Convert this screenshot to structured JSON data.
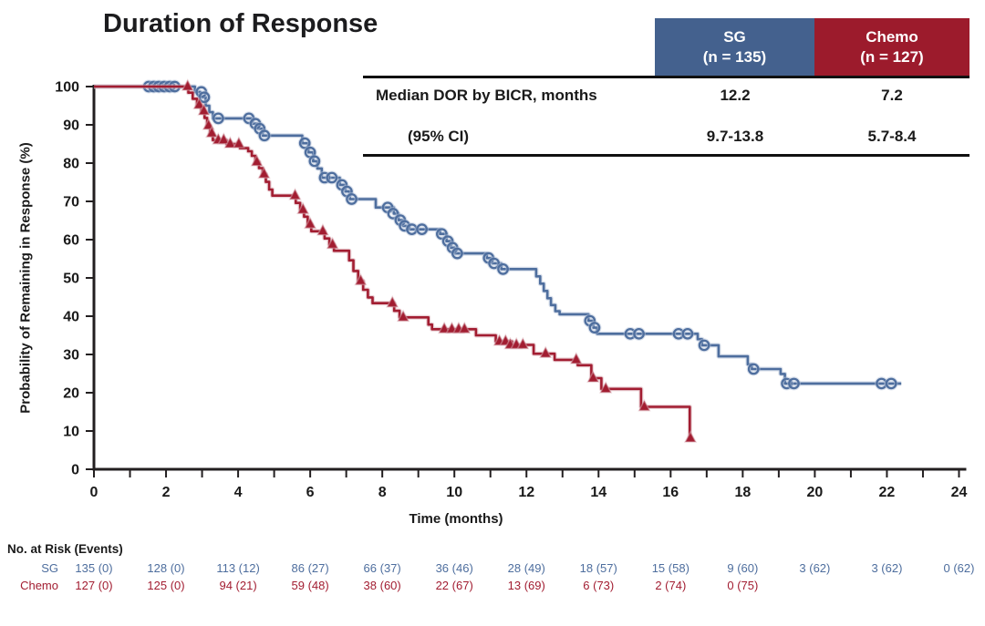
{
  "title": "Duration of Response",
  "colors": {
    "sg_header": "#44618e",
    "chemo_header": "#9c1b2c",
    "sg_line": "#4e6e9e",
    "sg_halo": "#b6c3d9",
    "chemo_line": "#a21d31",
    "chemo_halo": "#d8aab2",
    "axis": "#231f20",
    "text": "#1a1a1a"
  },
  "stats_table": {
    "columns": [
      {
        "label": "SG",
        "sub": "(n = 135)"
      },
      {
        "label": "Chemo",
        "sub": "(n = 127)"
      }
    ],
    "rows": [
      {
        "label": "Median DOR by BICR, months",
        "values": [
          "12.2",
          "7.2"
        ]
      },
      {
        "label": "(95% CI)",
        "values": [
          "9.7-13.8",
          "5.7-8.4"
        ]
      }
    ]
  },
  "chart_data": {
    "type": "line",
    "subtype": "kaplan-meier-step",
    "title": "Duration of Response",
    "xlabel": "Time (months)",
    "ylabel": "Probability of Remaining in Response (%)",
    "xlim": [
      0,
      24
    ],
    "ylim": [
      0,
      100
    ],
    "xticks_labeled": [
      0,
      2,
      4,
      6,
      8,
      10,
      12,
      14,
      16,
      18,
      20,
      22,
      24
    ],
    "xticks_minor_every": 1,
    "yticks": [
      0,
      10,
      20,
      30,
      40,
      50,
      60,
      70,
      80,
      90,
      100
    ],
    "grid": false,
    "legend_position": "none",
    "series": [
      {
        "name": "SG",
        "median_months": "12.2",
        "ci_95": "9.7-13.8",
        "marker": "open-circle",
        "points": [
          [
            0,
            100
          ],
          [
            2.8,
            100
          ],
          [
            2.8,
            98.6
          ],
          [
            2.95,
            98.6
          ],
          [
            2.95,
            97.2
          ],
          [
            3.1,
            97.2
          ],
          [
            3.1,
            95.0
          ],
          [
            3.2,
            95.0
          ],
          [
            3.2,
            93.3
          ],
          [
            3.3,
            93.3
          ],
          [
            3.3,
            91.7
          ],
          [
            4.38,
            91.7
          ],
          [
            4.38,
            90.3
          ],
          [
            4.55,
            90.3
          ],
          [
            4.55,
            89.0
          ],
          [
            4.68,
            89.0
          ],
          [
            4.68,
            87.2
          ],
          [
            5.78,
            87.2
          ],
          [
            5.78,
            85.2
          ],
          [
            5.95,
            85.2
          ],
          [
            5.95,
            82.8
          ],
          [
            6.08,
            82.8
          ],
          [
            6.08,
            80.5
          ],
          [
            6.2,
            80.5
          ],
          [
            6.2,
            78.6
          ],
          [
            6.32,
            78.6
          ],
          [
            6.32,
            76.2
          ],
          [
            6.82,
            76.2
          ],
          [
            6.82,
            74.3
          ],
          [
            6.98,
            74.3
          ],
          [
            6.98,
            72.6
          ],
          [
            7.1,
            72.6
          ],
          [
            7.1,
            70.6
          ],
          [
            7.82,
            70.6
          ],
          [
            7.82,
            68.4
          ],
          [
            8.32,
            68.4
          ],
          [
            8.32,
            66.8
          ],
          [
            8.45,
            66.8
          ],
          [
            8.45,
            65.1
          ],
          [
            8.58,
            65.1
          ],
          [
            8.58,
            63.6
          ],
          [
            8.75,
            63.6
          ],
          [
            8.75,
            62.7
          ],
          [
            9.6,
            62.7
          ],
          [
            9.6,
            61.5
          ],
          [
            9.78,
            61.5
          ],
          [
            9.78,
            59.6
          ],
          [
            9.9,
            59.6
          ],
          [
            9.9,
            57.9
          ],
          [
            10.02,
            57.9
          ],
          [
            10.02,
            56.4
          ],
          [
            10.9,
            56.4
          ],
          [
            10.9,
            55.2
          ],
          [
            11.05,
            55.2
          ],
          [
            11.05,
            53.8
          ],
          [
            11.3,
            53.8
          ],
          [
            11.3,
            52.3
          ],
          [
            12.27,
            52.3
          ],
          [
            12.27,
            50.4
          ],
          [
            12.38,
            50.4
          ],
          [
            12.38,
            48.5
          ],
          [
            12.48,
            48.5
          ],
          [
            12.48,
            46.6
          ],
          [
            12.58,
            46.6
          ],
          [
            12.58,
            44.7
          ],
          [
            12.68,
            44.7
          ],
          [
            12.68,
            42.9
          ],
          [
            12.8,
            42.9
          ],
          [
            12.8,
            41.3
          ],
          [
            12.92,
            41.3
          ],
          [
            12.92,
            40.5
          ],
          [
            13.72,
            40.5
          ],
          [
            13.72,
            38.8
          ],
          [
            13.86,
            38.8
          ],
          [
            13.86,
            37.0
          ],
          [
            13.96,
            37.0
          ],
          [
            13.96,
            35.4
          ],
          [
            16.75,
            35.4
          ],
          [
            16.75,
            34.0
          ],
          [
            16.87,
            34.0
          ],
          [
            16.87,
            32.4
          ],
          [
            17.33,
            32.4
          ],
          [
            17.33,
            29.5
          ],
          [
            18.14,
            29.5
          ],
          [
            18.14,
            27.4
          ],
          [
            18.25,
            27.4
          ],
          [
            18.25,
            26.2
          ],
          [
            19.05,
            26.2
          ],
          [
            19.05,
            24.9
          ],
          [
            19.17,
            24.9
          ],
          [
            19.17,
            22.4
          ],
          [
            22.4,
            22.4
          ]
        ],
        "censors": [
          [
            1.52,
            100
          ],
          [
            1.66,
            100
          ],
          [
            1.8,
            100
          ],
          [
            1.95,
            100
          ],
          [
            2.1,
            100
          ],
          [
            2.24,
            100
          ],
          [
            2.98,
            98.6
          ],
          [
            3.06,
            97.2
          ],
          [
            3.45,
            91.7
          ],
          [
            4.3,
            91.7
          ],
          [
            4.48,
            90.3
          ],
          [
            4.6,
            89.0
          ],
          [
            4.73,
            87.2
          ],
          [
            5.85,
            85.2
          ],
          [
            6.0,
            82.8
          ],
          [
            6.12,
            80.5
          ],
          [
            6.4,
            76.2
          ],
          [
            6.6,
            76.2
          ],
          [
            6.88,
            74.3
          ],
          [
            7.02,
            72.6
          ],
          [
            7.15,
            70.6
          ],
          [
            8.15,
            68.4
          ],
          [
            8.3,
            66.8
          ],
          [
            8.5,
            65.1
          ],
          [
            8.62,
            63.6
          ],
          [
            8.82,
            62.7
          ],
          [
            9.1,
            62.7
          ],
          [
            9.65,
            61.5
          ],
          [
            9.82,
            59.6
          ],
          [
            9.95,
            57.9
          ],
          [
            10.08,
            56.4
          ],
          [
            10.95,
            55.2
          ],
          [
            11.1,
            53.8
          ],
          [
            11.35,
            52.3
          ],
          [
            13.76,
            38.8
          ],
          [
            13.89,
            37.0
          ],
          [
            14.88,
            35.4
          ],
          [
            15.12,
            35.4
          ],
          [
            16.22,
            35.4
          ],
          [
            16.47,
            35.4
          ],
          [
            16.93,
            32.4
          ],
          [
            18.3,
            26.2
          ],
          [
            19.22,
            22.4
          ],
          [
            19.42,
            22.4
          ],
          [
            21.85,
            22.4
          ],
          [
            22.12,
            22.4
          ]
        ]
      },
      {
        "name": "Chemo",
        "median_months": "7.2",
        "ci_95": "5.7-8.4",
        "marker": "filled-triangle",
        "points": [
          [
            0,
            100
          ],
          [
            2.62,
            100
          ],
          [
            2.62,
            98.4
          ],
          [
            2.74,
            98.4
          ],
          [
            2.74,
            96.8
          ],
          [
            2.86,
            96.8
          ],
          [
            2.86,
            95.2
          ],
          [
            2.98,
            95.2
          ],
          [
            2.98,
            93.6
          ],
          [
            3.07,
            93.6
          ],
          [
            3.07,
            91.8
          ],
          [
            3.14,
            91.8
          ],
          [
            3.14,
            89.8
          ],
          [
            3.22,
            89.8
          ],
          [
            3.22,
            87.8
          ],
          [
            3.3,
            87.8
          ],
          [
            3.3,
            86.0
          ],
          [
            3.68,
            86.0
          ],
          [
            3.68,
            85.0
          ],
          [
            4.05,
            85.0
          ],
          [
            4.05,
            83.9
          ],
          [
            4.28,
            83.9
          ],
          [
            4.28,
            83.1
          ],
          [
            4.38,
            83.1
          ],
          [
            4.38,
            81.9
          ],
          [
            4.48,
            81.9
          ],
          [
            4.48,
            80.3
          ],
          [
            4.58,
            80.3
          ],
          [
            4.58,
            78.7
          ],
          [
            4.68,
            78.7
          ],
          [
            4.68,
            77.1
          ],
          [
            4.77,
            77.1
          ],
          [
            4.77,
            75.1
          ],
          [
            4.86,
            75.1
          ],
          [
            4.86,
            73.1
          ],
          [
            4.95,
            73.1
          ],
          [
            4.95,
            71.5
          ],
          [
            5.6,
            71.5
          ],
          [
            5.6,
            69.6
          ],
          [
            5.72,
            69.6
          ],
          [
            5.72,
            67.8
          ],
          [
            5.83,
            67.8
          ],
          [
            5.83,
            66.0
          ],
          [
            5.93,
            66.0
          ],
          [
            5.93,
            64.0
          ],
          [
            6.03,
            64.0
          ],
          [
            6.03,
            62.2
          ],
          [
            6.4,
            62.2
          ],
          [
            6.4,
            60.3
          ],
          [
            6.53,
            60.3
          ],
          [
            6.53,
            58.7
          ],
          [
            6.66,
            58.7
          ],
          [
            6.66,
            57.1
          ],
          [
            7.08,
            57.1
          ],
          [
            7.08,
            54.6
          ],
          [
            7.2,
            54.6
          ],
          [
            7.2,
            51.8
          ],
          [
            7.33,
            51.8
          ],
          [
            7.33,
            49.2
          ],
          [
            7.47,
            49.2
          ],
          [
            7.47,
            46.9
          ],
          [
            7.6,
            46.9
          ],
          [
            7.6,
            44.9
          ],
          [
            7.73,
            44.9
          ],
          [
            7.73,
            43.4
          ],
          [
            8.33,
            43.4
          ],
          [
            8.33,
            41.4
          ],
          [
            8.48,
            41.4
          ],
          [
            8.48,
            39.7
          ],
          [
            9.28,
            39.7
          ],
          [
            9.28,
            37.8
          ],
          [
            9.38,
            37.8
          ],
          [
            9.38,
            36.6
          ],
          [
            10.6,
            36.6
          ],
          [
            10.6,
            35.0
          ],
          [
            11.15,
            35.0
          ],
          [
            11.15,
            33.4
          ],
          [
            11.6,
            33.4
          ],
          [
            11.6,
            32.5
          ],
          [
            12.2,
            32.5
          ],
          [
            12.2,
            30.2
          ],
          [
            12.78,
            30.2
          ],
          [
            12.78,
            28.6
          ],
          [
            13.42,
            28.6
          ],
          [
            13.42,
            27.2
          ],
          [
            13.8,
            27.2
          ],
          [
            13.8,
            23.8
          ],
          [
            14.08,
            23.8
          ],
          [
            14.08,
            21.0
          ],
          [
            15.18,
            21.0
          ],
          [
            15.18,
            16.3
          ],
          [
            16.53,
            16.3
          ],
          [
            16.53,
            8.1
          ]
        ],
        "censors": [
          [
            2.6,
            100
          ],
          [
            2.92,
            95.2
          ],
          [
            3.05,
            93.6
          ],
          [
            3.18,
            89.8
          ],
          [
            3.27,
            87.8
          ],
          [
            3.45,
            86.0
          ],
          [
            3.6,
            86.0
          ],
          [
            3.78,
            85.0
          ],
          [
            4.02,
            85.0
          ],
          [
            4.52,
            80.3
          ],
          [
            4.72,
            77.1
          ],
          [
            5.58,
            71.5
          ],
          [
            5.8,
            67.8
          ],
          [
            6.0,
            64.0
          ],
          [
            6.35,
            62.2
          ],
          [
            6.62,
            58.7
          ],
          [
            7.4,
            49.2
          ],
          [
            8.28,
            43.4
          ],
          [
            8.58,
            39.7
          ],
          [
            9.72,
            36.6
          ],
          [
            9.93,
            36.6
          ],
          [
            10.12,
            36.6
          ],
          [
            10.28,
            36.6
          ],
          [
            11.25,
            33.4
          ],
          [
            11.42,
            33.4
          ],
          [
            11.55,
            32.5
          ],
          [
            11.72,
            32.5
          ],
          [
            11.9,
            32.5
          ],
          [
            12.53,
            30.2
          ],
          [
            13.38,
            28.6
          ],
          [
            13.85,
            23.8
          ],
          [
            14.2,
            21.0
          ],
          [
            15.27,
            16.3
          ],
          [
            16.55,
            8.1
          ]
        ]
      }
    ]
  },
  "risk_table": {
    "title": "No. at Risk (Events)",
    "time_points": [
      0,
      2,
      4,
      6,
      8,
      10,
      12,
      14,
      16,
      18,
      20,
      22,
      24
    ],
    "rows": [
      {
        "label": "SG",
        "values": [
          "135 (0)",
          "128 (0)",
          "113 (12)",
          "86 (27)",
          "66 (37)",
          "36 (46)",
          "28 (49)",
          "18 (57)",
          "15 (58)",
          "9 (60)",
          "3 (62)",
          "3 (62)",
          "0 (62)"
        ]
      },
      {
        "label": "Chemo",
        "values": [
          "127 (0)",
          "125 (0)",
          "94 (21)",
          "59 (48)",
          "38 (60)",
          "22 (67)",
          "13 (69)",
          "6 (73)",
          "2 (74)",
          "0 (75)"
        ]
      }
    ]
  }
}
